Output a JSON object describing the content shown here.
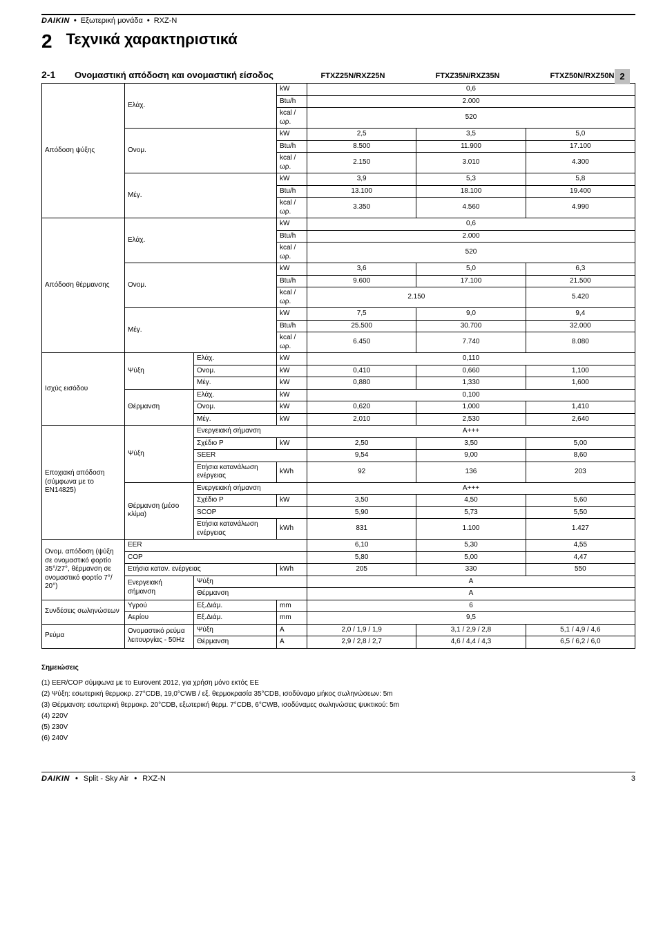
{
  "header": {
    "brand": "DAIKIN",
    "separator": "•",
    "unit_label": "Εξωτερική μονάδα",
    "model": "RXZ-N"
  },
  "chapter": {
    "num": "2",
    "title": "Τεχνικά χαρακτηριστικά"
  },
  "section": {
    "num": "2-1",
    "title": "Ονομαστική απόδοση και ονομαστική είσοδος",
    "columns": [
      "FTXZ25N/RXZ25N",
      "FTXZ35N/RXZ35N",
      "FTXZ50N/RXZ50N"
    ]
  },
  "side_tab": "2",
  "labels": {
    "cooling_cap": "Απόδοση ψύξης",
    "heating_cap": "Απόδοση θέρμανσης",
    "input_power": "Ισχύς εισόδου",
    "seasonal": "Εποχιακή απόδοση (σύμφωνα με το EN14825)",
    "nom_eff": "Ονομ. απόδοση (ψύξη σε ονομαστικό φορτίο 35°/27°, θέρμανση σε ονομαστικό φορτίο 7°/ 20°)",
    "pipe_conn": "Συνδέσεις σωληνώσεων",
    "current": "Ρεύμα",
    "min": "Ελάχ.",
    "nom": "Ονομ.",
    "max": "Μέγ.",
    "cooling": "Ψύξη",
    "heating": "Θέρμανση",
    "heating_avg": "Θέρμανση (μέσο κλίμα)",
    "energy_label": "Ενεργειακή σήμανση",
    "pdesign": "Σχέδιο Ρ",
    "seer": "SEER",
    "scop": "SCOP",
    "annual": "Ετήσια κατανάλωση ενέργειας",
    "eer": "EER",
    "cop": "COP",
    "annual_cons": "Ετήσια καταν. ενέργειας",
    "energy_class": "Ενεργειακή σήμανση",
    "liquid": "Υγρού",
    "gas": "Αερίου",
    "outer_dia": "Εξ.Διάμ.",
    "nom_current": "Ονομαστικό ρεύμα λειτουργίας - 50Hz",
    "kw": "kW",
    "btuh": "Btu/h",
    "kcalh": "kcal / ωρ.",
    "kwh": "kWh",
    "mm": "mm",
    "a": "A"
  },
  "t": {
    "cool_min_kw": "0,6",
    "cool_min_btu": "2.000",
    "cool_min_kcal": "520",
    "cool_nom_kw": [
      "2,5",
      "3,5",
      "5,0"
    ],
    "cool_nom_btu": [
      "8.500",
      "11.900",
      "17.100"
    ],
    "cool_nom_kcal": [
      "2.150",
      "3.010",
      "4.300"
    ],
    "cool_max_kw": [
      "3,9",
      "5,3",
      "5,8"
    ],
    "cool_max_btu": [
      "13.100",
      "18.100",
      "19.400"
    ],
    "cool_max_kcal": [
      "3.350",
      "4.560",
      "4.990"
    ],
    "heat_min_kw": "0,6",
    "heat_min_btu": "2.000",
    "heat_min_kcal": "520",
    "heat_nom_kw": [
      "3,6",
      "5,0",
      "6,3"
    ],
    "heat_nom_btu": [
      "9.600",
      "17.100",
      "21.500"
    ],
    "heat_nom_kcal": [
      "2.150",
      "",
      "5.420"
    ],
    "heat_max_kw": [
      "7,5",
      "9,0",
      "9,4"
    ],
    "heat_max_btu": [
      "25.500",
      "30.700",
      "32.000"
    ],
    "heat_max_kcal": [
      "6.450",
      "7.740",
      "8.080"
    ],
    "ip_cool_min": "0,110",
    "ip_cool_nom": [
      "0,410",
      "0,660",
      "1,100"
    ],
    "ip_cool_max": [
      "0,880",
      "1,330",
      "1,600"
    ],
    "ip_heat_min": "0,100",
    "ip_heat_nom": [
      "0,620",
      "1,000",
      "1,410"
    ],
    "ip_heat_max": [
      "2,010",
      "2,530",
      "2,640"
    ],
    "s_cool_label": "A+++",
    "s_cool_pdesign": [
      "2,50",
      "3,50",
      "5,00"
    ],
    "s_cool_seer": [
      "9,54",
      "9,00",
      "8,60"
    ],
    "s_cool_annual": [
      "92",
      "136",
      "203"
    ],
    "s_heat_label": "A+++",
    "s_heat_pdesign": [
      "3,50",
      "4,50",
      "5,60"
    ],
    "s_heat_scop": [
      "5,90",
      "5,73",
      "5,50"
    ],
    "s_heat_annual": [
      "831",
      "1.100",
      "1.427"
    ],
    "eer": [
      "6,10",
      "5,30",
      "4,55"
    ],
    "cop": [
      "5,80",
      "5,00",
      "4,47"
    ],
    "annual_cons": [
      "205",
      "330",
      "550"
    ],
    "class_cool": "A",
    "class_heat": "A",
    "liquid": "6",
    "gas": "9,5",
    "cur_cool": [
      "2,0 / 1,9 / 1,9",
      "3,1 / 2,9 / 2,8",
      "5,1 / 4,9 / 4,6"
    ],
    "cur_heat": [
      "2,9 / 2,8 / 2,7",
      "4,6 / 4,4 / 4,3",
      "6,5 / 6,2 / 6,0"
    ]
  },
  "notes": {
    "label": "Σημειώσεις",
    "items": [
      "(1) EER/COP σύμφωνα με το Eurovent 2012, για χρήση μόνο εκτός ΕΕ",
      "(2) Ψύξη: εσωτερική θερμοκρ. 27°CDB, 19,0°CWB / εξ. θερμοκρασία 35°CDB, ισοδύναμο μήκος σωληνώσεων: 5m",
      "(3) Θέρμανση: εσωτερική θερμοκρ. 20°CDB, εξωτερική θερμ. 7°CDB, 6°CWB, ισοδύναμες σωληνώσεις ψυκτικού: 5m",
      "(4) 220V",
      "(5) 230V",
      "(6) 240V"
    ]
  },
  "footer": {
    "brand": "DAIKIN",
    "text": "Split - Sky Air",
    "model": "RXZ-N",
    "page": "3"
  }
}
